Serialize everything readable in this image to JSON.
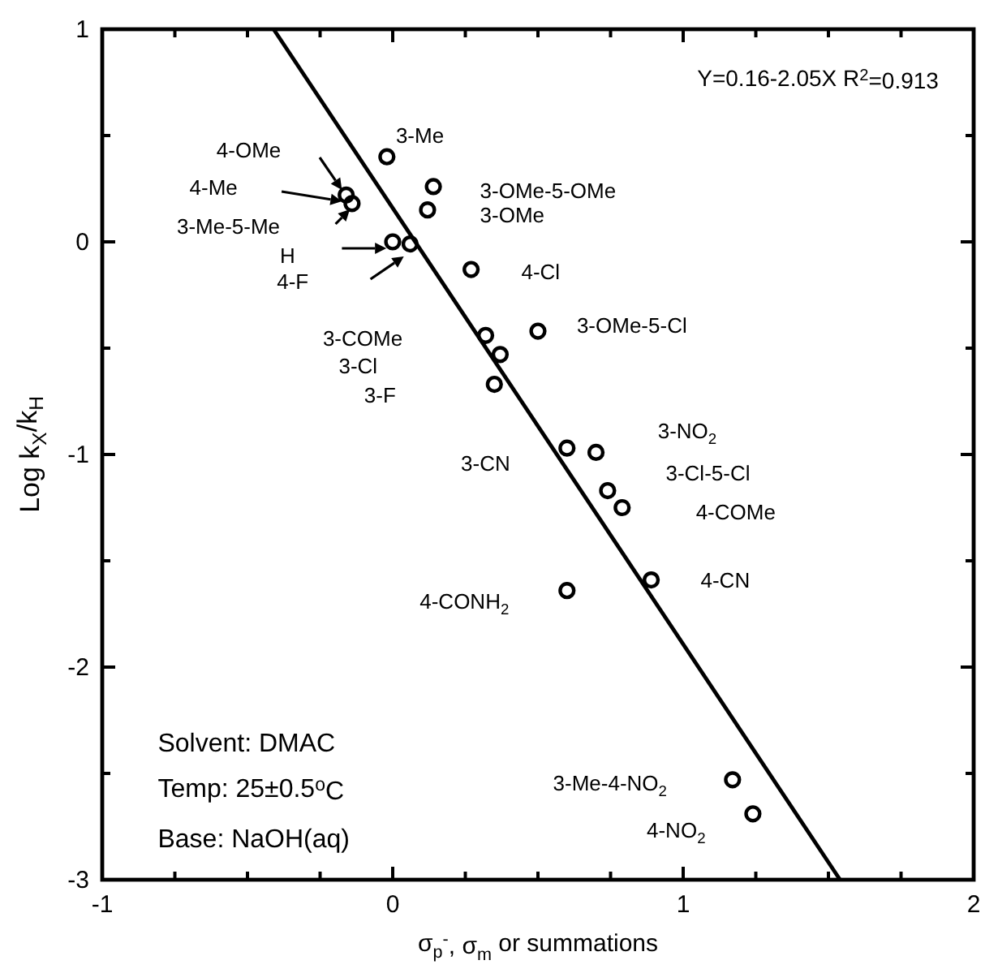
{
  "chart_data": {
    "type": "scatter",
    "xlabel": "σ$_{p}$$^{-}$, σ$_{m}$ or summations",
    "ylabel": "Log k$_{X}$/k$_{H}$",
    "xlim": [
      -1,
      2
    ],
    "xticks": [
      -1,
      {
        "value": -0.75,
        "label": null
      },
      {
        "value": -0.5,
        "label": null
      },
      {
        "value": -0.25,
        "label": null
      },
      0,
      {
        "value": 0.25,
        "label": null
      },
      {
        "value": 0.5,
        "label": null
      },
      {
        "value": 0.75,
        "label": null
      },
      1,
      {
        "value": 1.25,
        "label": null
      },
      {
        "value": 1.5,
        "label": null
      },
      {
        "value": 1.75,
        "label": null
      },
      2
    ],
    "ylim": [
      -3,
      1
    ],
    "yticks": [
      -3,
      {
        "value": -2.5,
        "label": null
      },
      -2,
      {
        "value": -1.5,
        "label": null
      },
      -1,
      {
        "value": -0.5,
        "label": null
      },
      0,
      {
        "value": 0.5,
        "label": null
      },
      1
    ],
    "grid": false,
    "series": [
      {
        "type": "scatter",
        "color": "#000000",
        "marker": "circle",
        "x": [
          -0.02,
          -0.16,
          -0.14,
          null,
          0,
          0.06,
          0.14,
          0.12,
          0.27,
          0.5,
          0.32,
          0.37,
          0.35,
          0.6,
          0.7,
          0.74,
          0.79,
          0.89,
          0.6,
          1.17,
          1.24
        ],
        "values": [
          0.4,
          0.22,
          0.18,
          null,
          0,
          -0.01,
          0.26,
          0.15,
          -0.13,
          -0.42,
          -0.44,
          -0.53,
          -0.67,
          -0.97,
          -0.99,
          -1.17,
          -1.25,
          -1.59,
          -1.64,
          -2.53,
          -2.69
        ]
      },
      {
        "type": "line",
        "color": "#000000",
        "marker": "none",
        "line_style": "solid",
        "x": [
          -0.41,
          1.54
        ],
        "values": [
          1,
          -3
        ]
      }
    ],
    "annotations": [
      "Y=0.16-2.05X  R$^{2}$=0.913",
      "Solvent: DMAC",
      "Temp: 25±0.5$^{o}$C",
      "Base: NaOH(aq)",
      "4-OMe",
      "4-Me",
      "3-Me-5-Me",
      "H",
      "4-F",
      "3-NO$_{2}$",
      "3-Cl-5-Cl",
      "4-COMe",
      "4-NO$_{2}$",
      "3-Me",
      "3-OMe-5-OMe",
      "3-OMe",
      "4-Cl",
      "3-OMe-5-Cl",
      "3-COMe",
      "3-Cl",
      "3-F",
      "3-CN",
      "4-CN",
      "4-CONH$_{2}$",
      "3-Me-4-NO$_{2}$"
    ]
  }
}
